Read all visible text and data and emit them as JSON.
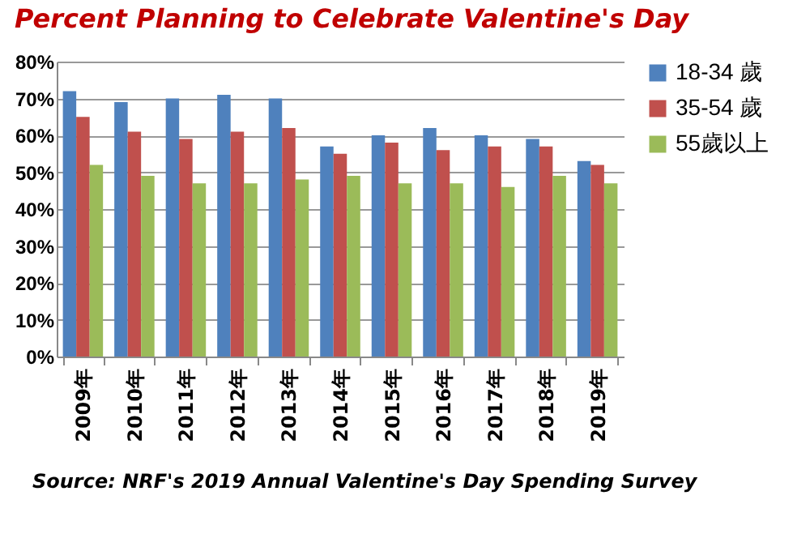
{
  "chart_data": {
    "type": "bar",
    "title": "Percent Planning to Celebrate Valentine's Day",
    "categories": [
      "2009年",
      "2010年",
      "2011年",
      "2012年",
      "2013年",
      "2014年",
      "2015年",
      "2016年",
      "2017年",
      "2018年",
      "2019年"
    ],
    "series": [
      {
        "name": "18-34 歲",
        "color": "#4f81bd",
        "values": [
          72,
          69,
          70,
          71,
          70,
          57,
          60,
          62,
          60,
          59,
          53
        ]
      },
      {
        "name": "35-54 歲",
        "color": "#c0504d",
        "values": [
          65,
          61,
          59,
          61,
          62,
          55,
          58,
          56,
          57,
          57,
          52
        ]
      },
      {
        "name": "55歲以上",
        "color": "#9bbb59",
        "values": [
          52,
          49,
          47,
          47,
          48,
          49,
          47,
          47,
          46,
          49,
          47
        ]
      }
    ],
    "ylim": [
      0,
      80
    ],
    "yticks": [
      {
        "value": 0,
        "label": "0%"
      },
      {
        "value": 10,
        "label": "10%"
      },
      {
        "value": 20,
        "label": "20%"
      },
      {
        "value": 30,
        "label": "30%"
      },
      {
        "value": 40,
        "label": "40%"
      },
      {
        "value": 50,
        "label": "50%"
      },
      {
        "value": 60,
        "label": "60%"
      },
      {
        "value": 70,
        "label": "70%"
      },
      {
        "value": 80,
        "label": "80%"
      }
    ],
    "grid": "y",
    "legend": "right",
    "annotations": [
      "Source: NRF's 2019 Annual Valentine's Day Spending Survey"
    ]
  }
}
